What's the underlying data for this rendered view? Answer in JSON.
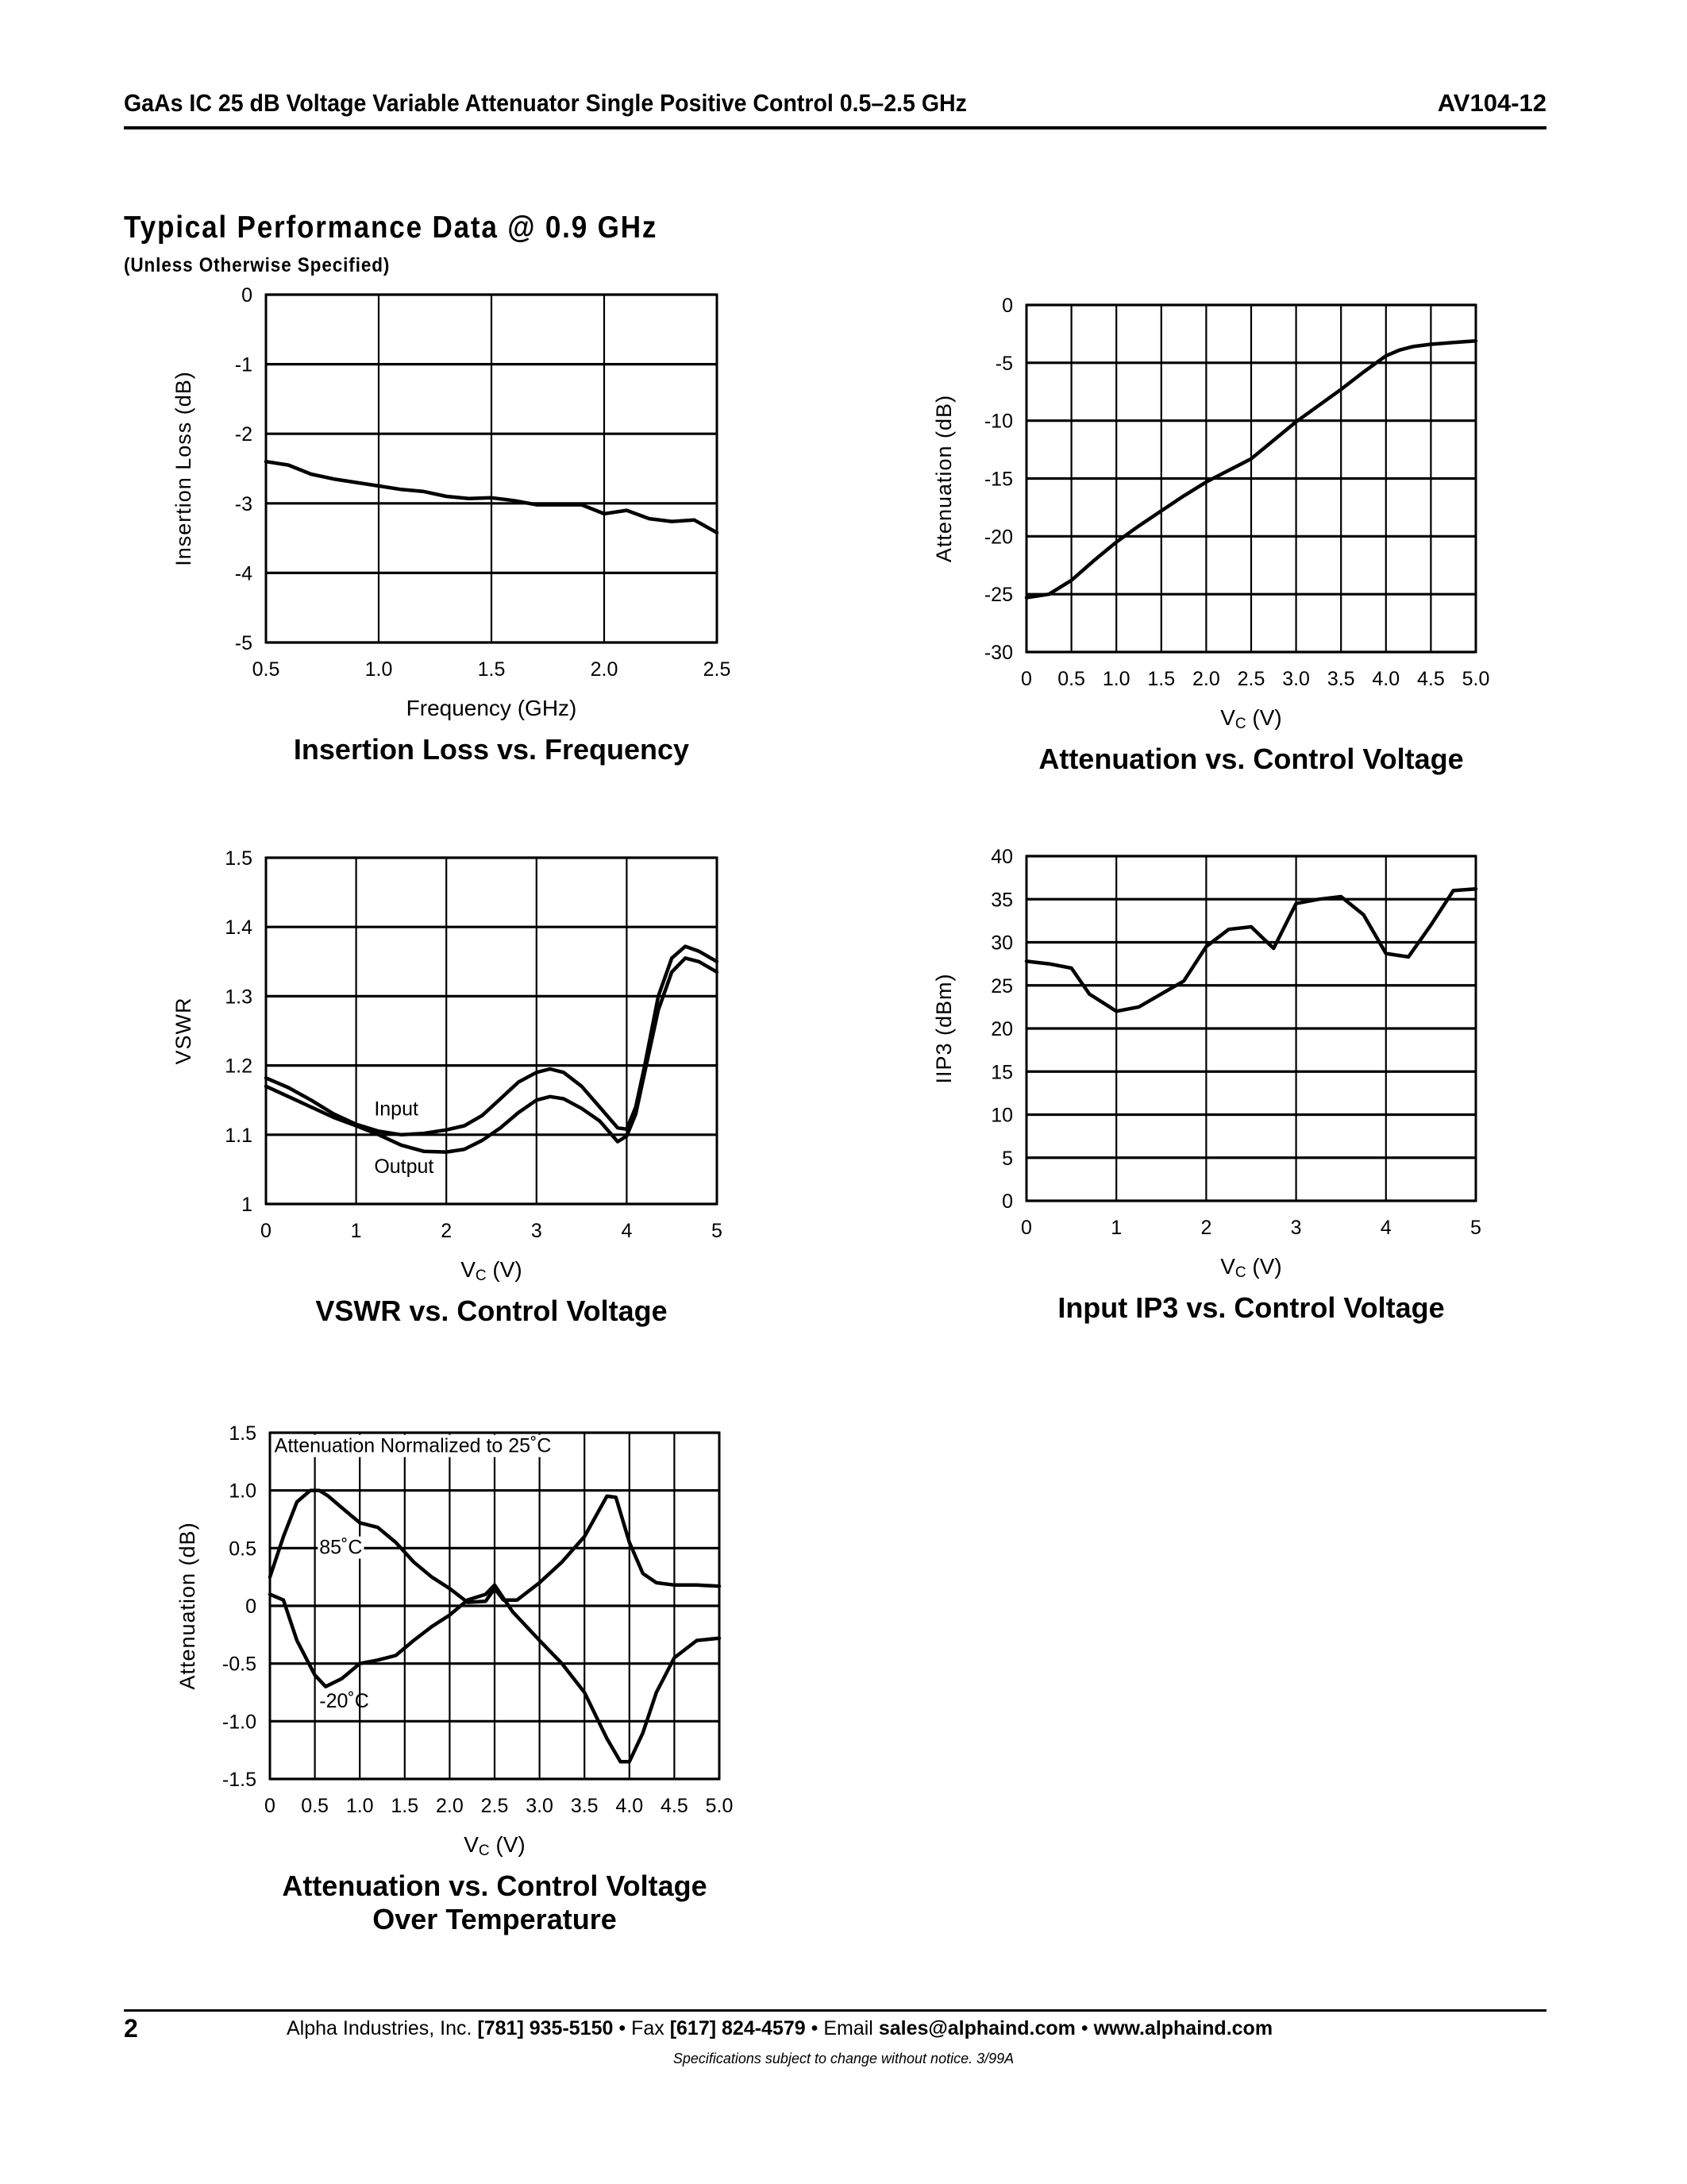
{
  "header": {
    "title": "GaAs IC 25 dB Voltage Variable Attenuator Single Positive Control 0.5–2.5 GHz",
    "part_number": "AV104-12"
  },
  "section": {
    "title": "Typical Performance Data @ 0.9 GHz",
    "subtitle": "(Unless Otherwise Specified)"
  },
  "footer": {
    "page": "2",
    "company": "Alpha Industries, Inc.",
    "phone": "[781] 935-5150",
    "sep1": "•",
    "fax_label": "Fax",
    "fax": "[617] 824-4579",
    "sep2": "•",
    "email_label": "Email",
    "email": "sales@alphaind.com",
    "sep3": "•",
    "web": "www.alphaind.com",
    "note": "Specifications subject to change without notice.  3/99A"
  },
  "chart_data": [
    {
      "type": "line",
      "title": [
        "Insertion Loss vs. Frequency"
      ],
      "xlabel": {
        "base": "Frequency (GHz)",
        "sub": "",
        "rest": ""
      },
      "ylabel": "Insertion Loss (dB)",
      "xlim": [
        0.5,
        2.5
      ],
      "ylim": [
        -5,
        0
      ],
      "xgrid": [
        0.5,
        1.0,
        1.5,
        2.0,
        2.5
      ],
      "xtick_labels": [
        "0.5",
        "1.0",
        "1.5",
        "2.0",
        "2.5"
      ],
      "ygrid": [
        -5,
        -4,
        -3,
        -2,
        -1,
        0
      ],
      "ytick_labels": [
        "-5",
        "-4",
        "-3",
        "-2",
        "-1",
        "0"
      ],
      "grid": true,
      "series": [
        {
          "x": [
            0.5,
            0.6,
            0.7,
            0.8,
            0.9,
            1.0,
            1.1,
            1.2,
            1.3,
            1.4,
            1.5,
            1.6,
            1.7,
            1.8,
            1.9,
            2.0,
            2.1,
            2.2,
            2.3,
            2.4,
            2.5
          ],
          "y": [
            -2.4,
            -2.45,
            -2.58,
            -2.65,
            -2.7,
            -2.75,
            -2.8,
            -2.83,
            -2.9,
            -2.93,
            -2.92,
            -2.96,
            -3.02,
            -3.02,
            -3.02,
            -3.15,
            -3.1,
            -3.22,
            -3.26,
            -3.24,
            -3.42
          ]
        }
      ],
      "annotations": []
    },
    {
      "type": "line",
      "title": [
        "Attenuation vs. Control Voltage"
      ],
      "xlabel": {
        "base": "V",
        "sub": "C",
        "rest": " (V)"
      },
      "ylabel": "Attenuation (dB)",
      "xlim": [
        0,
        5
      ],
      "ylim": [
        -30,
        0
      ],
      "xgrid": [
        0,
        0.5,
        1,
        1.5,
        2,
        2.5,
        3,
        3.5,
        4,
        4.5,
        5
      ],
      "xtick_labels": [
        "0",
        "0.5",
        "1.0",
        "1.5",
        "2.0",
        "2.5",
        "3.0",
        "3.5",
        "4.0",
        "4.5",
        "5.0"
      ],
      "ygrid": [
        -30,
        -25,
        -20,
        -15,
        -10,
        -5,
        0
      ],
      "ytick_labels": [
        "-30",
        "-25",
        "-20",
        "-15",
        "-10",
        "-5",
        "0"
      ],
      "grid": true,
      "series": [
        {
          "x": [
            0,
            0.25,
            0.5,
            0.75,
            1.0,
            1.25,
            1.5,
            1.75,
            2.0,
            2.25,
            2.5,
            2.75,
            3.0,
            3.25,
            3.5,
            3.75,
            4.0,
            4.15,
            4.3,
            4.5,
            4.75,
            5.0
          ],
          "y": [
            -25.3,
            -25,
            -23.8,
            -22.1,
            -20.5,
            -19.1,
            -17.8,
            -16.5,
            -15.3,
            -14.3,
            -13.3,
            -11.7,
            -10.1,
            -8.7,
            -7.3,
            -5.8,
            -4.4,
            -3.9,
            -3.6,
            -3.4,
            -3.25,
            -3.1
          ]
        }
      ],
      "annotations": []
    },
    {
      "type": "line",
      "title": [
        "VSWR vs. Control Voltage"
      ],
      "xlabel": {
        "base": "V",
        "sub": "C",
        "rest": " (V)"
      },
      "ylabel": "VSWR",
      "xlim": [
        0,
        5
      ],
      "ylim": [
        1,
        1.5
      ],
      "xgrid": [
        0,
        1,
        2,
        3,
        4,
        5
      ],
      "xtick_labels": [
        "0",
        "1",
        "2",
        "3",
        "4",
        "5"
      ],
      "ygrid": [
        1,
        1.1,
        1.2,
        1.3,
        1.4,
        1.5
      ],
      "ytick_labels": [
        "1",
        "1.1",
        "1.2",
        "1.3",
        "1.4",
        "1.5"
      ],
      "grid": true,
      "series": [
        {
          "name": "Input",
          "x": [
            0,
            0.25,
            0.5,
            0.75,
            1.0,
            1.25,
            1.5,
            1.75,
            2.0,
            2.2,
            2.4,
            2.6,
            2.8,
            3.0,
            3.15,
            3.3,
            3.5,
            3.7,
            3.9,
            4.0,
            4.1,
            4.2,
            4.35,
            4.5,
            4.65,
            4.8,
            5.0
          ],
          "y": [
            1.182,
            1.168,
            1.15,
            1.13,
            1.115,
            1.105,
            1.1,
            1.102,
            1.107,
            1.113,
            1.128,
            1.152,
            1.176,
            1.19,
            1.195,
            1.19,
            1.17,
            1.14,
            1.11,
            1.108,
            1.14,
            1.2,
            1.3,
            1.355,
            1.372,
            1.365,
            1.35
          ]
        },
        {
          "name": "Output",
          "x": [
            0,
            0.25,
            0.5,
            0.75,
            1.0,
            1.25,
            1.5,
            1.75,
            2.0,
            2.2,
            2.4,
            2.6,
            2.8,
            3.0,
            3.15,
            3.3,
            3.5,
            3.7,
            3.9,
            4.0,
            4.1,
            4.2,
            4.35,
            4.5,
            4.65,
            4.8,
            5.0
          ],
          "y": [
            1.17,
            1.155,
            1.14,
            1.125,
            1.113,
            1.1,
            1.085,
            1.076,
            1.075,
            1.079,
            1.092,
            1.11,
            1.132,
            1.15,
            1.155,
            1.152,
            1.138,
            1.12,
            1.09,
            1.098,
            1.13,
            1.19,
            1.28,
            1.335,
            1.355,
            1.35,
            1.335
          ]
        }
      ],
      "annotations": [
        {
          "text": "Input",
          "x": 1.2,
          "y": 1.128
        },
        {
          "text": "Output",
          "x": 1.2,
          "y": 1.045
        }
      ]
    },
    {
      "type": "line",
      "title": [
        "Input IP3 vs. Control Voltage"
      ],
      "xlabel": {
        "base": "V",
        "sub": "C",
        "rest": " (V)"
      },
      "ylabel": "IIP3 (dBm)",
      "xlim": [
        0,
        5
      ],
      "ylim": [
        0,
        40
      ],
      "xgrid": [
        0,
        1,
        2,
        3,
        4,
        5
      ],
      "xtick_labels": [
        "0",
        "1",
        "2",
        "3",
        "4",
        "5"
      ],
      "ygrid": [
        0,
        5,
        10,
        15,
        20,
        25,
        30,
        35,
        40
      ],
      "ytick_labels": [
        "0",
        "5",
        "10",
        "15",
        "20",
        "25",
        "30",
        "35",
        "40"
      ],
      "grid": true,
      "series": [
        {
          "x": [
            0,
            0.25,
            0.5,
            0.7,
            1.0,
            1.25,
            1.5,
            1.75,
            2.0,
            2.25,
            2.5,
            2.75,
            3.0,
            3.25,
            3.5,
            3.75,
            4.0,
            4.25,
            4.5,
            4.75,
            5.0
          ],
          "y": [
            27.8,
            27.5,
            27,
            24,
            22,
            22.5,
            24,
            25.5,
            29.5,
            31.5,
            31.8,
            29.3,
            34.5,
            35,
            35.3,
            33.2,
            28.7,
            28.3,
            32,
            36,
            36.2
          ]
        }
      ],
      "annotations": []
    },
    {
      "type": "line",
      "title": [
        "Attenuation vs. Control Voltage",
        "Over Temperature"
      ],
      "xlabel": {
        "base": "V",
        "sub": "C",
        "rest": " (V)"
      },
      "ylabel": "Attenuation (dB)",
      "xlim": [
        0,
        5
      ],
      "ylim": [
        -1.5,
        1.5
      ],
      "xgrid": [
        0,
        0.5,
        1,
        1.5,
        2,
        2.5,
        3,
        3.5,
        4,
        4.5,
        5
      ],
      "xtick_labels": [
        "0",
        "0.5",
        "1.0",
        "1.5",
        "2.0",
        "2.5",
        "3.0",
        "3.5",
        "4.0",
        "4.5",
        "5.0"
      ],
      "ygrid": [
        -1.5,
        -1,
        -0.5,
        0,
        0.5,
        1,
        1.5
      ],
      "ytick_labels": [
        "-1.5",
        "-1.0",
        "-0.5",
        "0",
        "0.5",
        "1.0",
        "1.5"
      ],
      "grid": true,
      "series": [
        {
          "name": "85˚C",
          "x": [
            0,
            0.15,
            0.3,
            0.45,
            0.55,
            0.65,
            0.8,
            1.0,
            1.2,
            1.4,
            1.6,
            1.8,
            2.0,
            2.2,
            2.4,
            2.5,
            2.6,
            2.75,
            3.0,
            3.25,
            3.5,
            3.75,
            3.85,
            4.0,
            4.15,
            4.3,
            4.5,
            4.75,
            5.0
          ],
          "y": [
            0.25,
            0.6,
            0.9,
            1.0,
            1.0,
            0.95,
            0.85,
            0.72,
            0.68,
            0.55,
            0.38,
            0.25,
            0.15,
            0.03,
            0.04,
            0.15,
            0.05,
            0.05,
            0.2,
            0.38,
            0.6,
            0.95,
            0.94,
            0.55,
            0.28,
            0.2,
            0.18,
            0.18,
            0.17
          ]
        },
        {
          "name": "-20˚C",
          "x": [
            0,
            0.15,
            0.3,
            0.5,
            0.62,
            0.8,
            1.0,
            1.2,
            1.4,
            1.6,
            1.8,
            2.0,
            2.2,
            2.4,
            2.5,
            2.7,
            3.0,
            3.25,
            3.5,
            3.75,
            3.9,
            4.0,
            4.15,
            4.3,
            4.5,
            4.75,
            5.0
          ],
          "y": [
            0.1,
            0.05,
            -0.3,
            -0.6,
            -0.7,
            -0.63,
            -0.5,
            -0.47,
            -0.43,
            -0.3,
            -0.18,
            -0.08,
            0.05,
            0.1,
            0.18,
            -0.05,
            -0.3,
            -0.5,
            -0.75,
            -1.15,
            -1.35,
            -1.35,
            -1.1,
            -0.75,
            -0.45,
            -0.3,
            -0.28
          ]
        }
      ],
      "annotations": [
        {
          "text": "Attenuation Normalized to 25˚C",
          "x": 0.05,
          "y": 1.33,
          "bg": true
        },
        {
          "text": "85˚C",
          "x": 0.55,
          "y": 0.45,
          "bg": true
        },
        {
          "text": "-20˚C",
          "x": 0.55,
          "y": -0.88,
          "bg": false
        }
      ]
    }
  ]
}
